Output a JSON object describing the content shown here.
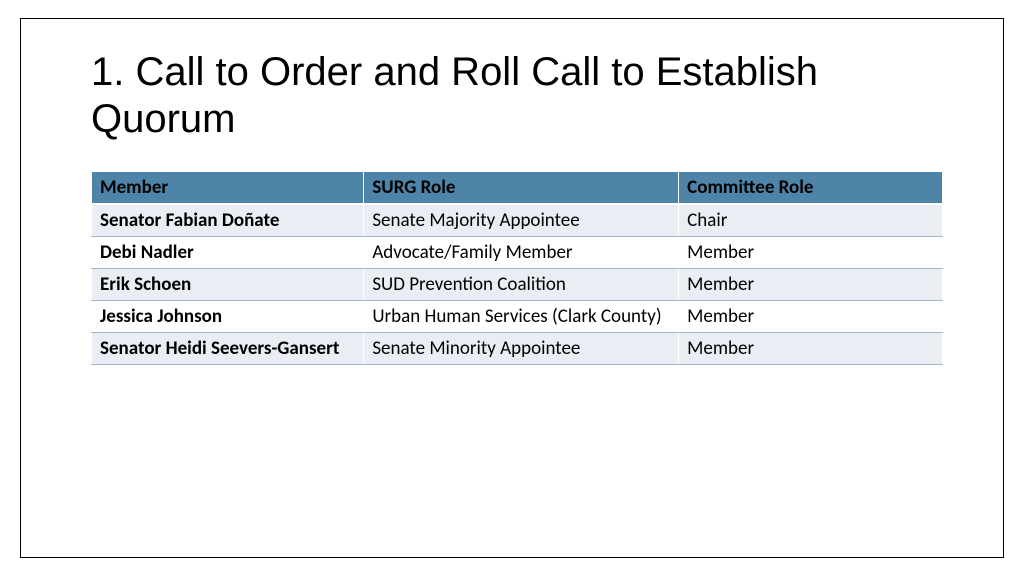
{
  "title": "1. Call to Order and Roll Call to Establish Quorum",
  "table": {
    "type": "table",
    "header_bg": "#4e84a8",
    "header_text_color": "#000000",
    "row_shade_bg": "#e8eef3",
    "row_plain_bg": "#ffffff",
    "border_color": "#9fb9cc",
    "font_size": 19,
    "columns": [
      {
        "label": "Member",
        "width": "32%",
        "bold_cells": true
      },
      {
        "label": "SURG Role",
        "width": "37%",
        "bold_cells": false
      },
      {
        "label": "Committee Role",
        "width": "31%",
        "bold_cells": false
      }
    ],
    "rows": [
      {
        "shade": true,
        "cells": [
          "Senator Fabian Doñate",
          "Senate Majority Appointee",
          "Chair"
        ]
      },
      {
        "shade": false,
        "cells": [
          "Debi Nadler",
          "Advocate/Family Member",
          "Member"
        ]
      },
      {
        "shade": true,
        "cells": [
          "Erik Schoen",
          "SUD Prevention Coalition",
          "Member"
        ]
      },
      {
        "shade": false,
        "cells": [
          "Jessica Johnson",
          "Urban Human Services (Clark County)",
          "Member"
        ]
      },
      {
        "shade": true,
        "cells": [
          "Senator Heidi Seevers-Gansert",
          "Senate Minority Appointee",
          "Member"
        ]
      }
    ]
  }
}
